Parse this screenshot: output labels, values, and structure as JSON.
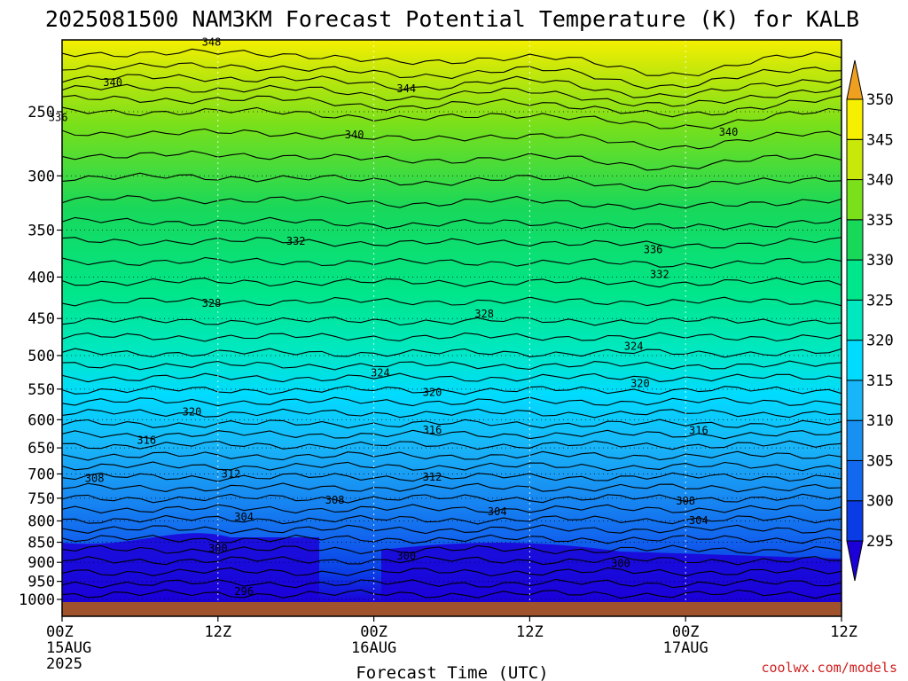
{
  "chart_data": {
    "type": "heatmap",
    "title": "2025081500 NAM3KM Forecast Potential Temperature (K) for KALB",
    "xlabel": "Forecast Time (UTC)",
    "ylabel": "",
    "credit": "coolwx.com/models",
    "x_ticks": [
      {
        "hour": 0,
        "lines": [
          "00Z",
          "15AUG",
          "2025"
        ]
      },
      {
        "hour": 12,
        "lines": [
          "12Z"
        ]
      },
      {
        "hour": 24,
        "lines": [
          "00Z",
          "16AUG"
        ]
      },
      {
        "hour": 36,
        "lines": [
          "12Z"
        ]
      },
      {
        "hour": 48,
        "lines": [
          "00Z",
          "17AUG"
        ]
      },
      {
        "hour": 60,
        "lines": [
          "12Z"
        ]
      }
    ],
    "xlim": [
      0,
      60
    ],
    "y_ticks": [
      250,
      300,
      350,
      400,
      450,
      500,
      550,
      600,
      650,
      700,
      750,
      800,
      850,
      900,
      950,
      1000
    ],
    "ylim": [
      1000,
      200
    ],
    "y_scale": "log",
    "colorbar": {
      "levels": [
        295,
        300,
        305,
        310,
        315,
        320,
        325,
        330,
        335,
        340,
        345,
        350
      ],
      "labels": [
        "295",
        "300",
        "305",
        "310",
        "315",
        "320",
        "325",
        "330",
        "335",
        "340",
        "345",
        "350"
      ],
      "colors": [
        "#1c00d8",
        "#0a3ce6",
        "#1268ee",
        "#1890f2",
        "#18b6f8",
        "#00dcff",
        "#00e8c0",
        "#00e68a",
        "#18d85a",
        "#7ae01a",
        "#c8e80a",
        "#f6f000",
        "#f0a020"
      ]
    },
    "contour_labels": [
      {
        "text": "348",
        "hour": 11.5,
        "p": 205
      },
      {
        "text": "340",
        "hour": 3.9,
        "p": 230
      },
      {
        "text": "344",
        "hour": 26.5,
        "p": 234
      },
      {
        "text": "336",
        "hour": -0.3,
        "p": 254
      },
      {
        "text": "340",
        "hour": 22.5,
        "p": 267
      },
      {
        "text": "340",
        "hour": 51.3,
        "p": 265
      },
      {
        "text": "332",
        "hour": 18.0,
        "p": 361
      },
      {
        "text": "336",
        "hour": 45.5,
        "p": 370
      },
      {
        "text": "332",
        "hour": 46.0,
        "p": 397
      },
      {
        "text": "328",
        "hour": 11.5,
        "p": 431
      },
      {
        "text": "328",
        "hour": 32.5,
        "p": 444
      },
      {
        "text": "324",
        "hour": 44.0,
        "p": 487
      },
      {
        "text": "324",
        "hour": 24.5,
        "p": 525
      },
      {
        "text": "320",
        "hour": 44.5,
        "p": 541
      },
      {
        "text": "320",
        "hour": 28.5,
        "p": 555
      },
      {
        "text": "320",
        "hour": 10.0,
        "p": 587
      },
      {
        "text": "316",
        "hour": 6.5,
        "p": 636
      },
      {
        "text": "316",
        "hour": 28.5,
        "p": 618
      },
      {
        "text": "316",
        "hour": 49.0,
        "p": 619
      },
      {
        "text": "308",
        "hour": 2.5,
        "p": 709
      },
      {
        "text": "312",
        "hour": 13.0,
        "p": 700
      },
      {
        "text": "312",
        "hour": 28.5,
        "p": 706
      },
      {
        "text": "308",
        "hour": 21.0,
        "p": 754
      },
      {
        "text": "308",
        "hour": 48.0,
        "p": 756
      },
      {
        "text": "304",
        "hour": 14.0,
        "p": 791
      },
      {
        "text": "304",
        "hour": 33.5,
        "p": 779
      },
      {
        "text": "304",
        "hour": 49.0,
        "p": 799
      },
      {
        "text": "300",
        "hour": 12.0,
        "p": 865
      },
      {
        "text": "300",
        "hour": 26.5,
        "p": 884
      },
      {
        "text": "300",
        "hour": 43.0,
        "p": 903
      },
      {
        "text": "296",
        "hour": 14.0,
        "p": 977
      }
    ]
  }
}
